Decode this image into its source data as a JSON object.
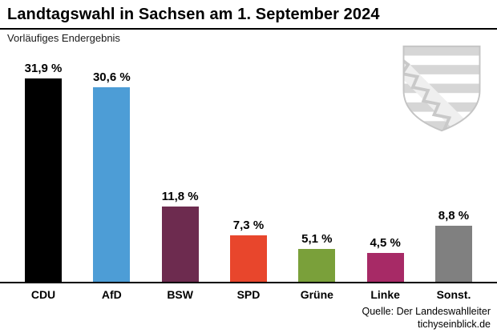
{
  "header": {
    "title": "Landtagswahl in Sachsen am 1. September 2024",
    "subtitle": "Vorläufiges Endergebnis"
  },
  "footer": {
    "source": "Quelle: Der Landeswahlleiter",
    "website": "tichyseinblick.de"
  },
  "chart_data": {
    "type": "bar",
    "title": "Landtagswahl in Sachsen am 1. September 2024",
    "subtitle": "Vorläufiges Endergebnis",
    "categories": [
      "CDU",
      "AfD",
      "BSW",
      "SPD",
      "Grüne",
      "Linke",
      "Sonst."
    ],
    "values": [
      31.9,
      30.6,
      11.8,
      7.3,
      5.1,
      4.5,
      8.8
    ],
    "value_labels": [
      "31,9 %",
      "30,6 %",
      "11,8 %",
      "7,3 %",
      "5,1 %",
      "4,5 %",
      "8,8 %"
    ],
    "colors": [
      "#000000",
      "#4d9dd6",
      "#6d2b4f",
      "#e8462c",
      "#7aa03a",
      "#a72a66",
      "#808080"
    ],
    "unit": "%",
    "ylim": [
      0,
      35
    ],
    "grid": false,
    "legend": "none"
  }
}
